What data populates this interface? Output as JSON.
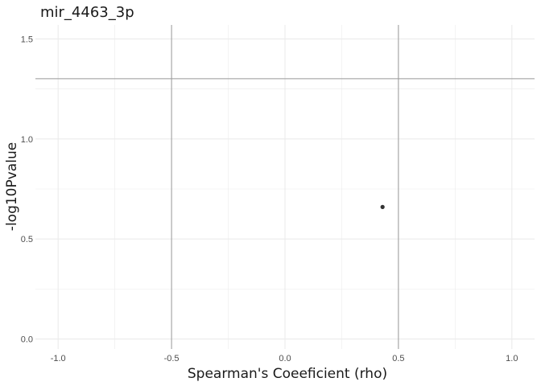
{
  "chart_data": {
    "type": "scatter",
    "title": "mir_4463_3p",
    "xlabel": "Spearman's Coeeficient (rho)",
    "ylabel": "-log10Pvalue",
    "xlim": [
      -1.1,
      1.1
    ],
    "ylim": [
      -0.05,
      1.57
    ],
    "x_ticks": [
      -1.0,
      -0.5,
      0.0,
      0.5,
      1.0
    ],
    "x_tick_labels": [
      "-1.0",
      "-0.5",
      "0.0",
      "0.5",
      "1.0"
    ],
    "y_ticks": [
      0.0,
      0.5,
      1.0,
      1.5
    ],
    "y_tick_labels": [
      "0.0",
      "0.5",
      "1.0",
      "1.5"
    ],
    "grid": true,
    "reference_lines": {
      "vertical": [
        -0.5,
        0.5
      ],
      "horizontal": [
        1.301
      ],
      "color": "#999999"
    },
    "points": [
      {
        "x": 0.43,
        "y": 0.66
      }
    ],
    "point_color": "#333333"
  }
}
